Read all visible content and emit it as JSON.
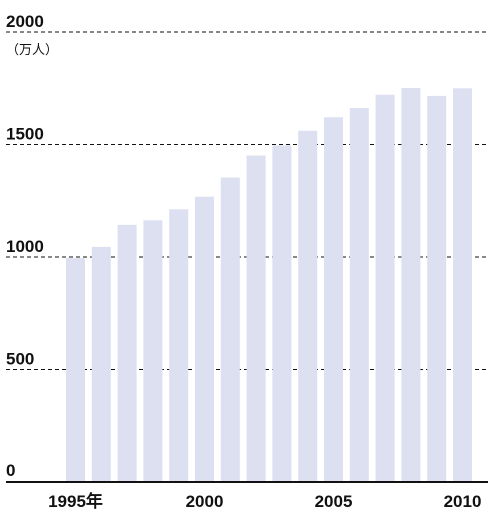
{
  "chart_data": {
    "type": "bar",
    "title": "",
    "xlabel": "",
    "ylabel": "",
    "unit_label": "（万人）",
    "ylim": [
      0,
      2000
    ],
    "yticks": [
      0,
      500,
      1000,
      1500,
      2000
    ],
    "grid": true,
    "legend": "none",
    "categories": [
      "1995",
      "1996",
      "1997",
      "1998",
      "1999",
      "2000",
      "2001",
      "2002",
      "2003",
      "2004",
      "2005",
      "2006",
      "2007",
      "2008",
      "2009",
      "2010"
    ],
    "values": [
      995,
      1045,
      1143,
      1163,
      1212,
      1268,
      1353,
      1451,
      1496,
      1561,
      1621,
      1662,
      1721,
      1751,
      1716,
      1750
    ],
    "x_tick_labels": [
      {
        "category": "1995",
        "label": "1995年"
      },
      {
        "category": "2000",
        "label": "2000"
      },
      {
        "category": "2005",
        "label": "2005"
      },
      {
        "category": "2010",
        "label": "2010"
      }
    ],
    "colors": {
      "bar": "#dde0f1",
      "axis": "#111111",
      "text": "#111111"
    }
  }
}
